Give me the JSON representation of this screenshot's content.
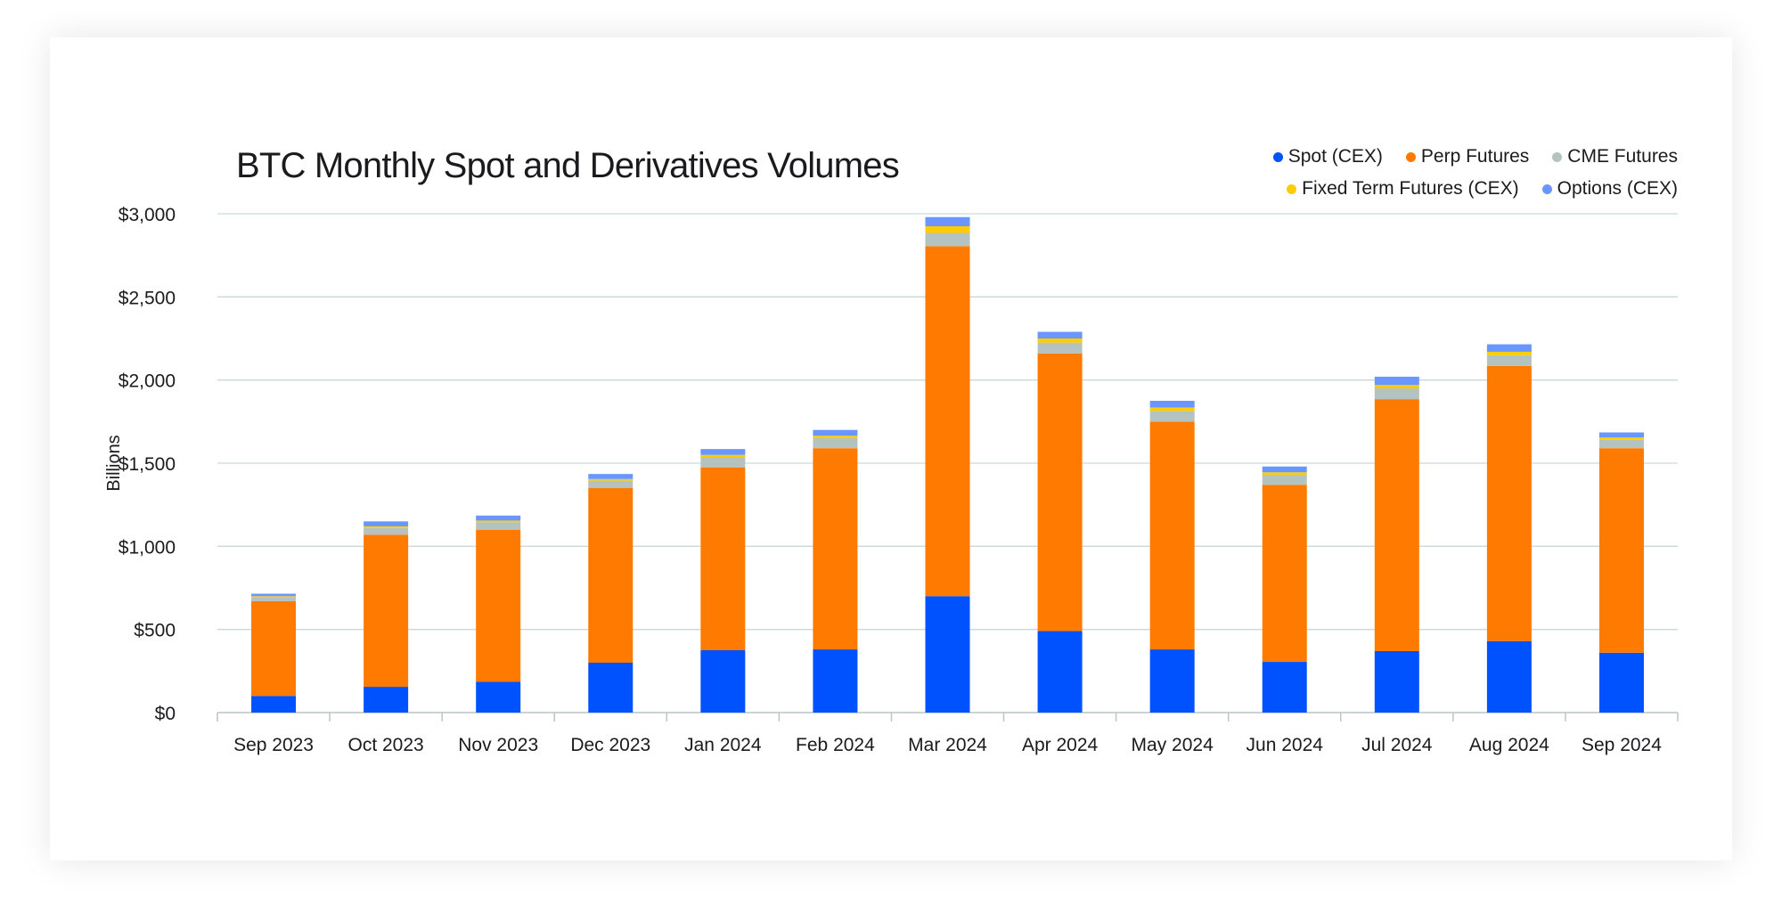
{
  "chart_data": {
    "type": "bar",
    "stacked": true,
    "title": "BTC Monthly Spot and Derivatives Volumes",
    "ylabel": "Billions",
    "xlabel": "",
    "ylim": [
      0,
      3000
    ],
    "yticks": [
      "$0",
      "$500",
      "$1,000",
      "$1,500",
      "$2,000",
      "$2,500",
      "$3,000"
    ],
    "ytick_values": [
      0,
      500,
      1000,
      1500,
      2000,
      2500,
      3000
    ],
    "grid": true,
    "legend_position": "top-right",
    "categories": [
      "Sep 2023",
      "Oct 2023",
      "Nov 2023",
      "Dec 2023",
      "Jan 2024",
      "Feb 2024",
      "Mar 2024",
      "Apr 2024",
      "May 2024",
      "Jun 2024",
      "Jul 2024",
      "Aug 2024",
      "Sep 2024"
    ],
    "series": [
      {
        "name": "Spot (CEX)",
        "color": "#0052ff",
        "values": [
          100,
          155,
          185,
          300,
          375,
          380,
          700,
          490,
          380,
          305,
          370,
          430,
          360
        ]
      },
      {
        "name": "Perp Futures",
        "color": "#ff7a00",
        "values": [
          570,
          915,
          915,
          1050,
          1100,
          1210,
          2105,
          1670,
          1370,
          1065,
          1515,
          1655,
          1230
        ]
      },
      {
        "name": "CME Futures",
        "color": "#b4c2c0",
        "values": [
          25,
          40,
          45,
          45,
          60,
          60,
          80,
          65,
          65,
          60,
          65,
          65,
          50
        ]
      },
      {
        "name": "Fixed Term Futures (CEX)",
        "color": "#ffcc00",
        "values": [
          5,
          10,
          10,
          10,
          15,
          15,
          40,
          25,
          20,
          15,
          20,
          20,
          15
        ]
      },
      {
        "name": "Options (CEX)",
        "color": "#6a96ff",
        "values": [
          15,
          30,
          30,
          30,
          35,
          35,
          55,
          40,
          40,
          35,
          50,
          45,
          30
        ]
      }
    ]
  },
  "legend": {
    "row1": [
      "Spot (CEX)",
      "Perp Futures",
      "CME Futures"
    ],
    "row2": [
      "Fixed Term Futures (CEX)",
      "Options (CEX)"
    ]
  }
}
